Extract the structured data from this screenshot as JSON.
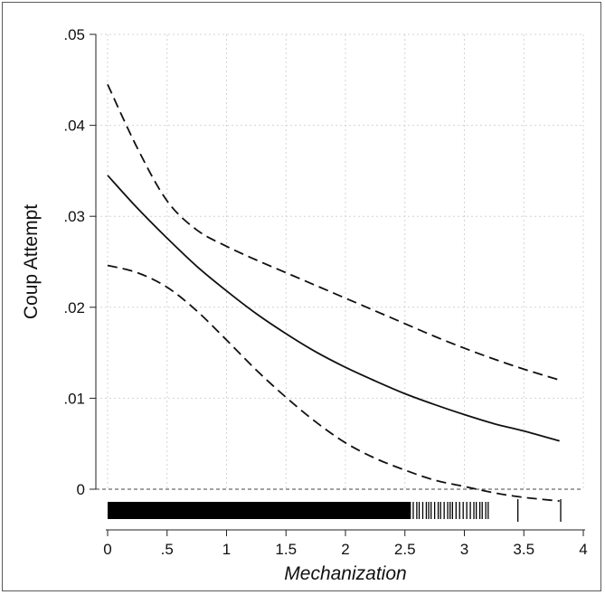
{
  "chart_data": {
    "type": "line",
    "title": "",
    "xlabel": "Mechanization",
    "ylabel": "Coup Attempt",
    "xlim": [
      0,
      4
    ],
    "ylim": [
      0,
      0.05
    ],
    "x_ticks": [
      {
        "value": 0,
        "label": "0"
      },
      {
        "value": 0.5,
        "label": ".5"
      },
      {
        "value": 1,
        "label": "1"
      },
      {
        "value": 1.5,
        "label": "1.5"
      },
      {
        "value": 2,
        "label": "2"
      },
      {
        "value": 2.5,
        "label": "2.5"
      },
      {
        "value": 3,
        "label": "3"
      },
      {
        "value": 3.5,
        "label": "3.5"
      },
      {
        "value": 4,
        "label": "4"
      }
    ],
    "y_ticks": [
      {
        "value": 0,
        "label": "0"
      },
      {
        "value": 0.01,
        "label": ".01"
      },
      {
        "value": 0.02,
        "label": ".02"
      },
      {
        "value": 0.03,
        "label": ".03"
      },
      {
        "value": 0.04,
        "label": ".04"
      },
      {
        "value": 0.05,
        "label": ".05"
      }
    ],
    "grid": true,
    "reference_line_y": 0,
    "series": [
      {
        "style": "solid",
        "x": [
          0,
          0.25,
          0.5,
          0.75,
          1.0,
          1.25,
          1.5,
          1.75,
          2.0,
          2.25,
          2.5,
          2.75,
          3.0,
          3.25,
          3.5,
          3.8
        ],
        "y": [
          0.0345,
          0.0309,
          0.0276,
          0.0245,
          0.0218,
          0.0193,
          0.0171,
          0.0151,
          0.0134,
          0.0119,
          0.0105,
          0.0093,
          0.0082,
          0.0072,
          0.0064,
          0.0053
        ]
      },
      {
        "style": "dashed",
        "x": [
          0,
          0.25,
          0.5,
          0.75,
          1.0,
          1.25,
          1.5,
          1.75,
          2.0,
          2.25,
          2.5,
          2.75,
          3.0,
          3.25,
          3.5,
          3.8
        ],
        "y": [
          0.0445,
          0.0375,
          0.0317,
          0.0285,
          0.0267,
          0.0252,
          0.0238,
          0.0224,
          0.021,
          0.0196,
          0.0182,
          0.0168,
          0.0155,
          0.0143,
          0.0132,
          0.012
        ]
      },
      {
        "style": "dashed",
        "x": [
          0,
          0.25,
          0.5,
          0.75,
          1.0,
          1.25,
          1.5,
          1.75,
          2.0,
          2.25,
          2.5,
          2.75,
          3.0,
          3.25,
          3.5,
          3.8
        ],
        "y": [
          0.0246,
          0.0238,
          0.0222,
          0.0196,
          0.0164,
          0.0131,
          0.0101,
          0.0074,
          0.0051,
          0.0034,
          0.0021,
          0.001,
          0.0003,
          -0.0004,
          -0.0009,
          -0.0013
        ]
      }
    ],
    "rug": {
      "dense_range": [
        0,
        2.55
      ],
      "sparse_x": [
        2.57,
        2.6,
        2.62,
        2.65,
        2.68,
        2.7,
        2.72,
        2.75,
        2.78,
        2.8,
        2.83,
        2.86,
        2.88,
        2.9,
        2.93,
        2.96,
        2.99,
        3.02,
        3.05,
        3.08,
        3.1,
        3.13,
        3.15,
        3.18,
        3.2,
        3.45,
        3.81
      ]
    }
  }
}
